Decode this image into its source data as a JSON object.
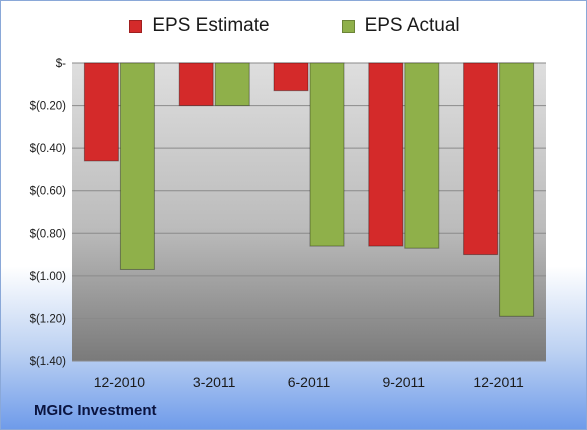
{
  "legend": {
    "estimate_label": "EPS Estimate",
    "actual_label": "EPS Actual"
  },
  "footer": {
    "company": "MGIC Investment"
  },
  "colors": {
    "estimate": "#d42a2a",
    "actual": "#8fb04a",
    "plot_background_top": "#dedede",
    "plot_background_bottom": "#7a7a7a"
  },
  "chart_data": {
    "type": "bar",
    "categories": [
      "12-2010",
      "3-2011",
      "6-2011",
      "9-2011",
      "12-2011"
    ],
    "series": [
      {
        "name": "EPS Estimate",
        "values": [
          -0.46,
          -0.2,
          -0.13,
          -0.86,
          -0.9
        ]
      },
      {
        "name": "EPS Actual",
        "values": [
          -0.97,
          -0.2,
          -0.86,
          -0.87,
          -1.19
        ]
      }
    ],
    "ylim": [
      -1.4,
      0
    ],
    "yticks": [
      0,
      -0.2,
      -0.4,
      -0.6,
      -0.8,
      -1.0,
      -1.2,
      -1.4
    ],
    "ytick_labels": [
      "$-",
      "$(0.20)",
      "$(0.40)",
      "$(0.60)",
      "$(0.80)",
      "$(1.00)",
      "$(1.20)",
      "$(1.40)"
    ],
    "grid": true,
    "legend_position": "top"
  }
}
